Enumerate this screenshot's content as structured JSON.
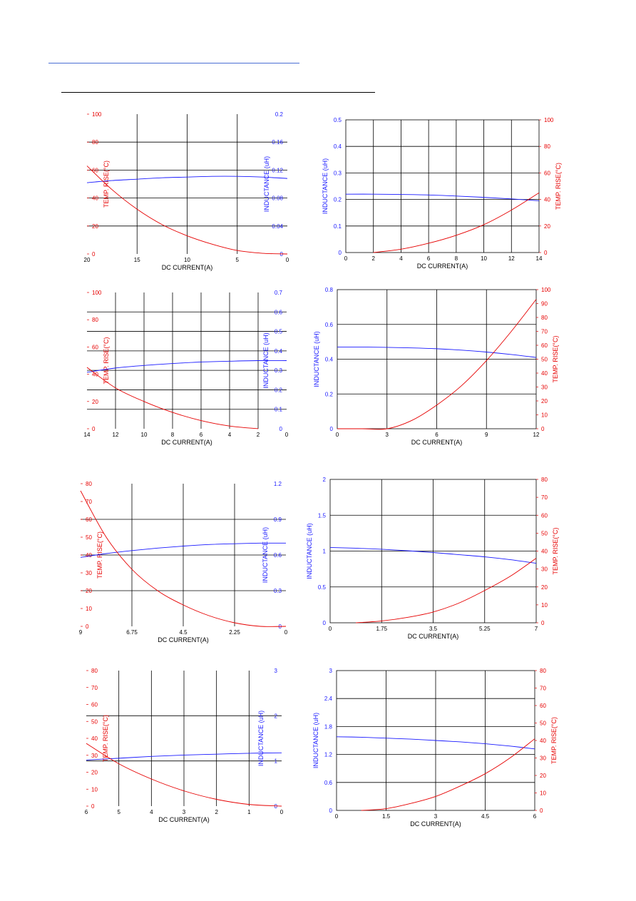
{
  "colors": {
    "inductance": "#1a1aff",
    "temp": "#e60000",
    "grid": "#000000",
    "link_rule": "#4a6fd4"
  },
  "chart_data": [
    {
      "type": "line",
      "x": [
        0,
        2.5,
        5,
        7.5,
        10,
        12.5,
        15,
        17.5,
        20
      ],
      "xticks": [
        0,
        5,
        10,
        15,
        20
      ],
      "xlim": [
        0,
        20
      ],
      "y1ticks": [
        "0",
        "0.04",
        "0.08",
        "0.12",
        "0.16",
        "0.2"
      ],
      "y1lim": [
        0,
        0.2
      ],
      "y2ticks": [
        "0",
        "20",
        "40",
        "60",
        "80",
        "100"
      ],
      "y2lim": [
        0,
        100
      ],
      "xlabel": "DC CURRENT(A)",
      "y1label": "INDUCTANCE (uH)",
      "y2label": "TEMP. RISE(°C)",
      "series": [
        {
          "axis": "y1",
          "values": [
            0.108,
            0.11,
            0.111,
            0.111,
            0.11,
            0.109,
            0.107,
            0.105,
            0.102
          ]
        },
        {
          "axis": "y2",
          "values": [
            0,
            0.5,
            2.5,
            7,
            13,
            21,
            32,
            46,
            63
          ]
        }
      ]
    },
    {
      "type": "line",
      "x": [
        0,
        2,
        4,
        6,
        8,
        10,
        12,
        14
      ],
      "xticks": [
        0,
        2,
        4,
        6,
        8,
        10,
        12,
        14
      ],
      "xlim": [
        0,
        14
      ],
      "y1ticks": [
        "0",
        "0.1",
        "0.2",
        "0.3",
        "0.4",
        "0.5"
      ],
      "y1lim": [
        0,
        0.5
      ],
      "y2ticks": [
        "0",
        "20",
        "40",
        "60",
        "80",
        "100"
      ],
      "y2lim": [
        0,
        100
      ],
      "xlabel": "DC CURRENT(A)",
      "y1label": "INDUCTANCE (uH)",
      "y2label": "TEMP. RISE(°C)",
      "series": [
        {
          "axis": "y1",
          "values": [
            0.22,
            0.22,
            0.219,
            0.217,
            0.213,
            0.208,
            0.202,
            0.195
          ]
        },
        {
          "axis": "y2",
          "values": [
            null,
            0,
            2.5,
            7,
            13,
            21,
            32,
            45
          ]
        }
      ]
    },
    {
      "type": "line",
      "x": [
        0,
        2,
        4,
        6,
        8,
        10,
        12,
        14
      ],
      "xticks": [
        0,
        2,
        4,
        6,
        8,
        10,
        12,
        14
      ],
      "xlim": [
        0,
        14
      ],
      "y1ticks": [
        "0",
        "0.1",
        "0.2",
        "0.3",
        "0.4",
        "0.5",
        "0.6",
        "0.7"
      ],
      "y1lim": [
        0,
        0.7
      ],
      "y2ticks": [
        "0",
        "20",
        "40",
        "60",
        "80",
        "100"
      ],
      "y2lim": [
        0,
        100
      ],
      "xlabel": "DC CURRENT(A)",
      "y1label": "INDUCTANCE (uH)",
      "y2label": "TEMP. RISE(°C)",
      "series": [
        {
          "axis": "y1",
          "values": [
            0.35,
            0.35,
            0.347,
            0.343,
            0.335,
            0.325,
            0.312,
            0.29
          ]
        },
        {
          "axis": "y2",
          "values": [
            null,
            0,
            2,
            6,
            12,
            20,
            30,
            45
          ]
        }
      ]
    },
    {
      "type": "line",
      "x": [
        0,
        1.5,
        3,
        4.5,
        6,
        7.5,
        9,
        10.5,
        12
      ],
      "xticks": [
        0,
        3,
        6,
        9,
        12
      ],
      "xlim": [
        0,
        12
      ],
      "y1ticks": [
        "0",
        "0.2",
        "0.4",
        "0.6",
        "0.8"
      ],
      "y1lim": [
        0,
        0.8
      ],
      "y2ticks": [
        "0",
        "10",
        "20",
        "30",
        "40",
        "50",
        "60",
        "70",
        "80",
        "90",
        "100"
      ],
      "y2lim": [
        0,
        100
      ],
      "xlabel": "DC CURRENT(A)",
      "y1label": "INDUCTANCE (uH)",
      "y2label": "TEMP. RISE(°C)",
      "series": [
        {
          "axis": "y1",
          "values": [
            0.47,
            0.47,
            0.468,
            0.465,
            0.46,
            0.452,
            0.441,
            0.427,
            0.41
          ]
        },
        {
          "axis": "y2",
          "values": [
            0,
            0,
            0,
            6,
            17,
            31,
            49,
            70,
            93
          ]
        }
      ]
    },
    {
      "type": "line",
      "x": [
        0,
        1.125,
        2.25,
        3.375,
        4.5,
        5.625,
        6.75,
        7.875,
        9
      ],
      "xticks": [
        "0",
        "2.25",
        "4.5",
        "6.75",
        "9"
      ],
      "xlim": [
        0,
        9
      ],
      "y1ticks": [
        "0",
        "0.3",
        "0.6",
        "0.9",
        "1.2"
      ],
      "y1lim": [
        0,
        1.2
      ],
      "y2ticks": [
        "0",
        "10",
        "20",
        "30",
        "40",
        "50",
        "60",
        "70",
        "80"
      ],
      "y2lim": [
        0,
        80
      ],
      "xlabel": "DC CURRENT(A)",
      "y1label": "INDUCTANCE (uH)",
      "y2label": "TEMP. RISE(°C)",
      "series": [
        {
          "axis": "y1",
          "values": [
            0.7,
            0.7,
            0.695,
            0.688,
            0.675,
            0.658,
            0.637,
            0.612,
            0.58
          ]
        },
        {
          "axis": "y2",
          "values": [
            0,
            0,
            2,
            6,
            12,
            20,
            32,
            50,
            76
          ]
        }
      ]
    },
    {
      "type": "line",
      "x": [
        0,
        0.875,
        1.75,
        2.625,
        3.5,
        4.375,
        5.25,
        6.125,
        7
      ],
      "xticks": [
        "0",
        "1.75",
        "3.5",
        "5.25",
        "7"
      ],
      "xlim": [
        0,
        7
      ],
      "y1ticks": [
        "0",
        "0.5",
        "1",
        "1.5",
        "2"
      ],
      "y1lim": [
        0,
        2
      ],
      "y2ticks": [
        "0",
        "10",
        "20",
        "30",
        "40",
        "50",
        "60",
        "70",
        "80"
      ],
      "y2lim": [
        0,
        80
      ],
      "xlabel": "DC CURRENT(A)",
      "y1label": "INDUCTANCE (uH)",
      "y2label": "TEMP. RISE(°C)",
      "series": [
        {
          "axis": "y1",
          "values": [
            1.05,
            1.04,
            1.025,
            1.005,
            0.98,
            0.95,
            0.92,
            0.88,
            0.83
          ]
        },
        {
          "axis": "y2",
          "values": [
            null,
            0,
            1,
            3,
            6,
            11,
            18,
            26,
            36
          ]
        }
      ]
    },
    {
      "type": "line",
      "x": [
        0,
        1,
        2,
        3,
        4,
        5,
        6
      ],
      "xticks": [
        0,
        1,
        2,
        3,
        4,
        5,
        6
      ],
      "xlim": [
        0,
        6
      ],
      "y1ticks": [
        "0",
        "1",
        "2",
        "3"
      ],
      "y1lim": [
        0,
        3
      ],
      "y2ticks": [
        "0",
        "10",
        "20",
        "30",
        "40",
        "50",
        "60",
        "70",
        "80"
      ],
      "y2lim": [
        0,
        80
      ],
      "xlabel": "DC CURRENT(A)",
      "y1label": "INDUCTANCE (uH)",
      "y2label": "TEMP. RISE(°C)",
      "series": [
        {
          "axis": "y1",
          "values": [
            1.18,
            1.17,
            1.15,
            1.13,
            1.1,
            1.06,
            1.02
          ]
        },
        {
          "axis": "y2",
          "values": [
            0,
            1,
            4,
            9,
            16,
            25,
            37
          ]
        }
      ]
    },
    {
      "type": "line",
      "x": [
        0,
        0.75,
        1.5,
        2.25,
        3,
        3.75,
        4.5,
        5.25,
        6
      ],
      "xticks": [
        "0",
        "1.5",
        "3",
        "4.5",
        "6"
      ],
      "xlim": [
        0,
        6
      ],
      "y1ticks": [
        "0",
        "0.6",
        "1.2",
        "1.8",
        "2.4",
        "3"
      ],
      "y1lim": [
        0,
        3
      ],
      "y2ticks": [
        "0",
        "10",
        "20",
        "30",
        "40",
        "50",
        "60",
        "70",
        "80"
      ],
      "y2lim": [
        0,
        80
      ],
      "xlabel": "DC CURRENT(A)",
      "y1label": "INDUCTANCE (uH)",
      "y2label": "TEMP. RISE(°C)",
      "series": [
        {
          "axis": "y1",
          "values": [
            1.58,
            1.57,
            1.55,
            1.53,
            1.5,
            1.47,
            1.43,
            1.38,
            1.32
          ]
        },
        {
          "axis": "y2",
          "values": [
            null,
            0,
            1,
            4,
            8,
            14,
            21,
            30,
            41
          ]
        }
      ]
    }
  ]
}
